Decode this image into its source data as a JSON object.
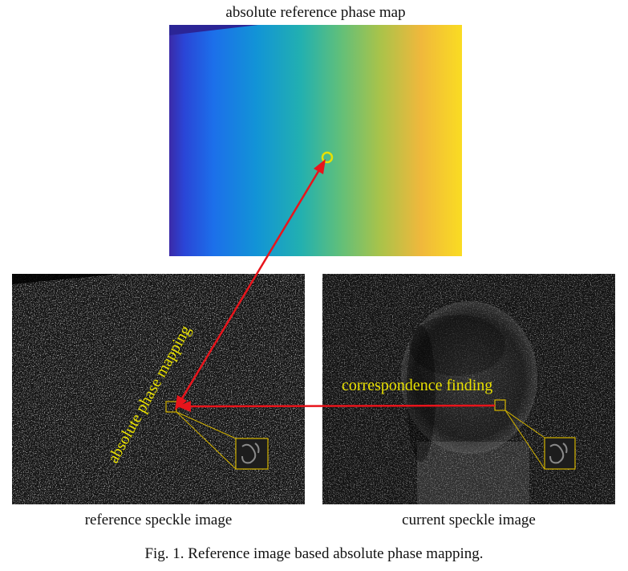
{
  "figure": {
    "phase_map_title": "absolute reference phase map",
    "reference_label": "reference speckle image",
    "current_label": "current speckle image",
    "caption": "Fig. 1. Reference image based absolute phase mapping."
  },
  "annotations": {
    "mapping_text": "absolute phase mapping",
    "correspondence_text": "correspondence finding"
  },
  "colors": {
    "arrow": "#e8141b",
    "highlight": "#e8e000",
    "box": "#d4b400",
    "speckle_bg": "#141414"
  },
  "colormap": [
    "#3b2aa8",
    "#2166e6",
    "#1190d8",
    "#1fb0b0",
    "#57c07e",
    "#a6c44a",
    "#f2b63a",
    "#fad824"
  ]
}
